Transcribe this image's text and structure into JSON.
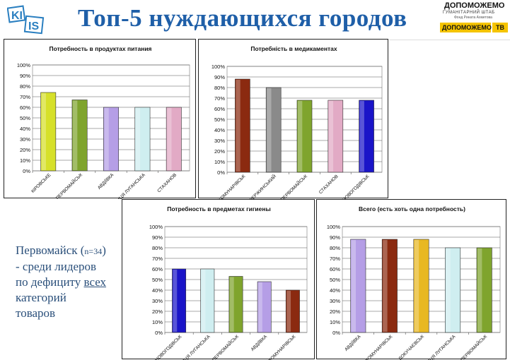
{
  "header": {
    "title": "Топ-5 нуждающихся городов",
    "logo_left_text": "KIIS",
    "logo_right": {
      "brand": "ДОПОМОЖЕМО",
      "subtitle": "ГУМАНІТАРНИЙ ШТАБ",
      "fund": "Фонд Рината Ахметова",
      "bar_label": "ДОПОМОЖЕМО",
      "bar_suffix": "ТВ"
    }
  },
  "side_note": {
    "city": "Первомайск",
    "n_open": " (",
    "n_text": "n=34",
    "n_close": ")",
    "line2": "- среди лидеров",
    "line3_prefix": "по дефициту ",
    "line3_underlined": "всех",
    "line4": "категорий",
    "line5": "товаров"
  },
  "colors": {
    "title": "#1f5fa8",
    "note": "#2a4f7a",
    "accent_yellow": "#f5c400"
  },
  "chart_data": [
    {
      "id": "food",
      "type": "bar",
      "title": "Потребность в продуктах питания",
      "categories": [
        "КІРОВСЬКЕ",
        "ПЕРВОМАЙСЬК",
        "АВДІЇВКА",
        "СТАНИЦЯ ЛУГАНСЬКА",
        "СТАХАНОВ"
      ],
      "values": [
        74,
        67,
        60,
        60,
        60
      ],
      "bar_colors": [
        "#d6e02a",
        "#7fa42d",
        "#b59ee6",
        "#cfeef0",
        "#e2aac5"
      ],
      "ylim": [
        0,
        100
      ],
      "yticks": [
        "0%",
        "10%",
        "20%",
        "30%",
        "40%",
        "50%",
        "60%",
        "70%",
        "80%",
        "90%",
        "100%"
      ],
      "grid": true
    },
    {
      "id": "medicine",
      "type": "bar",
      "title": "Потребність в медикаментах",
      "categories": [
        "ЮНОКОМУНАРІВСЬК",
        "ДЗЕРЖИНСЬКИЙ",
        "ПЕРВОМАЙСЬК",
        "СТАХАНОВ",
        "НОВОГОДІВСЬК"
      ],
      "values": [
        88,
        80,
        68,
        68,
        68
      ],
      "bar_colors": [
        "#8b2a10",
        "#8a8a8a",
        "#7fa42d",
        "#e2aac5",
        "#1a14c8"
      ],
      "ylim": [
        0,
        100
      ],
      "yticks": [
        "0%",
        "10%",
        "20%",
        "30%",
        "40%",
        "50%",
        "60%",
        "70%",
        "80%",
        "90%",
        "100%"
      ],
      "grid": true
    },
    {
      "id": "hygiene",
      "type": "bar",
      "title": "Потребность в предметах гигиены",
      "categories": [
        "НОВОГОДІВСЬК",
        "СТАНИЦЯ ЛУГАНСЬКА",
        "ПЕРВОМАЙСЬК",
        "АВДІЇВКА",
        "ЮНОКОМУНАРІВСЬК"
      ],
      "values": [
        60,
        60,
        53,
        48,
        40
      ],
      "bar_colors": [
        "#1a14c8",
        "#cfeef0",
        "#7fa42d",
        "#b59ee6",
        "#8b2a10"
      ],
      "ylim": [
        0,
        100
      ],
      "yticks": [
        "0%",
        "10%",
        "20%",
        "30%",
        "40%",
        "50%",
        "60%",
        "70%",
        "80%",
        "90%",
        "100%"
      ],
      "grid": true
    },
    {
      "id": "total",
      "type": "bar",
      "title": "Всего (есть хоть одна потребность)",
      "categories": [
        "АВДІЇВКА",
        "ЮНОКОМУНАРІВСЬК",
        "ДОКУЧАЄВСЬК",
        "СТАНИЦЯ ЛУГАНСЬКА",
        "ПЕРВОМАЙСЬК"
      ],
      "values": [
        88,
        88,
        88,
        80,
        80
      ],
      "bar_colors": [
        "#b59ee6",
        "#8b2a10",
        "#e8b822",
        "#cfeef0",
        "#7fa42d"
      ],
      "ylim": [
        0,
        100
      ],
      "yticks": [
        "0%",
        "10%",
        "20%",
        "30%",
        "40%",
        "50%",
        "60%",
        "70%",
        "80%",
        "90%",
        "100%"
      ],
      "grid": true
    }
  ]
}
